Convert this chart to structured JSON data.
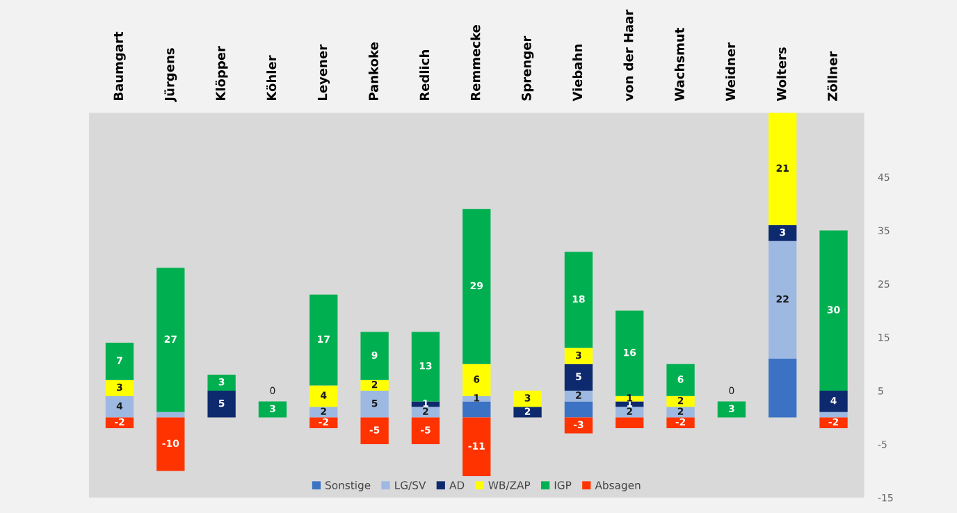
{
  "chart_data": {
    "type": "bar",
    "stacked": true,
    "categories": [
      "Baumgart",
      "Jürgens",
      "Klöpper",
      "Köhler",
      "Leyener",
      "Pankoke",
      "Redlich",
      "Remmecke",
      "Sprenger",
      "Viebahn",
      "von der Haar",
      "Wachsmut",
      "Weidner",
      "Wolters",
      "Zöllner"
    ],
    "series": [
      {
        "name": "Sonstige",
        "color": "#3c72c4",
        "values": [
          0,
          0,
          0,
          0,
          0,
          0,
          0,
          3,
          0,
          3,
          0,
          0,
          0,
          11,
          0
        ],
        "value_labels": [
          null,
          null,
          null,
          null,
          null,
          null,
          null,
          null,
          null,
          null,
          null,
          null,
          null,
          null,
          null
        ]
      },
      {
        "name": "LG/SV",
        "color": "#9db9e2",
        "values": [
          4,
          1,
          0,
          0,
          2,
          5,
          2,
          1,
          0,
          2,
          2,
          2,
          0,
          22,
          1
        ],
        "value_labels": [
          "4",
          null,
          null,
          null,
          "2",
          "5",
          "2",
          "1",
          null,
          "2",
          "2",
          "2",
          null,
          "22",
          null
        ]
      },
      {
        "name": "AD",
        "color": "#0e2a6e",
        "values": [
          0,
          0,
          5,
          0,
          0,
          0,
          1,
          0,
          2,
          5,
          1,
          0,
          0,
          3,
          4
        ],
        "value_labels": [
          null,
          null,
          "5",
          null,
          null,
          null,
          "1",
          null,
          "2",
          "5",
          "1",
          null,
          null,
          "3",
          "4"
        ]
      },
      {
        "name": "WB/ZAP",
        "color": "#ffff00",
        "values": [
          3,
          0,
          0,
          0,
          4,
          2,
          0,
          6,
          3,
          3,
          1,
          2,
          0,
          21,
          0
        ],
        "value_labels": [
          "3",
          null,
          null,
          null,
          "4",
          "2",
          null,
          "6",
          "3",
          "3",
          "1",
          "2",
          null,
          "21",
          null
        ]
      },
      {
        "name": "IGP",
        "color": "#00b050",
        "values": [
          7,
          27,
          3,
          3,
          17,
          9,
          13,
          29,
          0,
          18,
          16,
          6,
          3,
          0,
          30
        ],
        "value_labels": [
          "7",
          "27",
          "3",
          "3",
          "17",
          "9",
          "13",
          "29",
          null,
          "18",
          "16",
          "6",
          "3",
          null,
          "30"
        ]
      },
      {
        "name": "Absagen",
        "color": "#ff3300",
        "values": [
          -2,
          -10,
          0,
          0,
          -2,
          -5,
          -5,
          -11,
          0,
          -3,
          -2,
          -2,
          0,
          0,
          -2
        ],
        "value_labels": [
          "-2",
          "-10",
          null,
          "0",
          "-2",
          "-5",
          "-5",
          "-11",
          null,
          "-3",
          null,
          "-2",
          "0",
          null,
          "-2"
        ]
      }
    ],
    "ylim": [
      -15,
      57
    ],
    "yticks": [
      -15,
      -5,
      5,
      15,
      25,
      35,
      45
    ],
    "grid": false,
    "legend": "bottom"
  }
}
